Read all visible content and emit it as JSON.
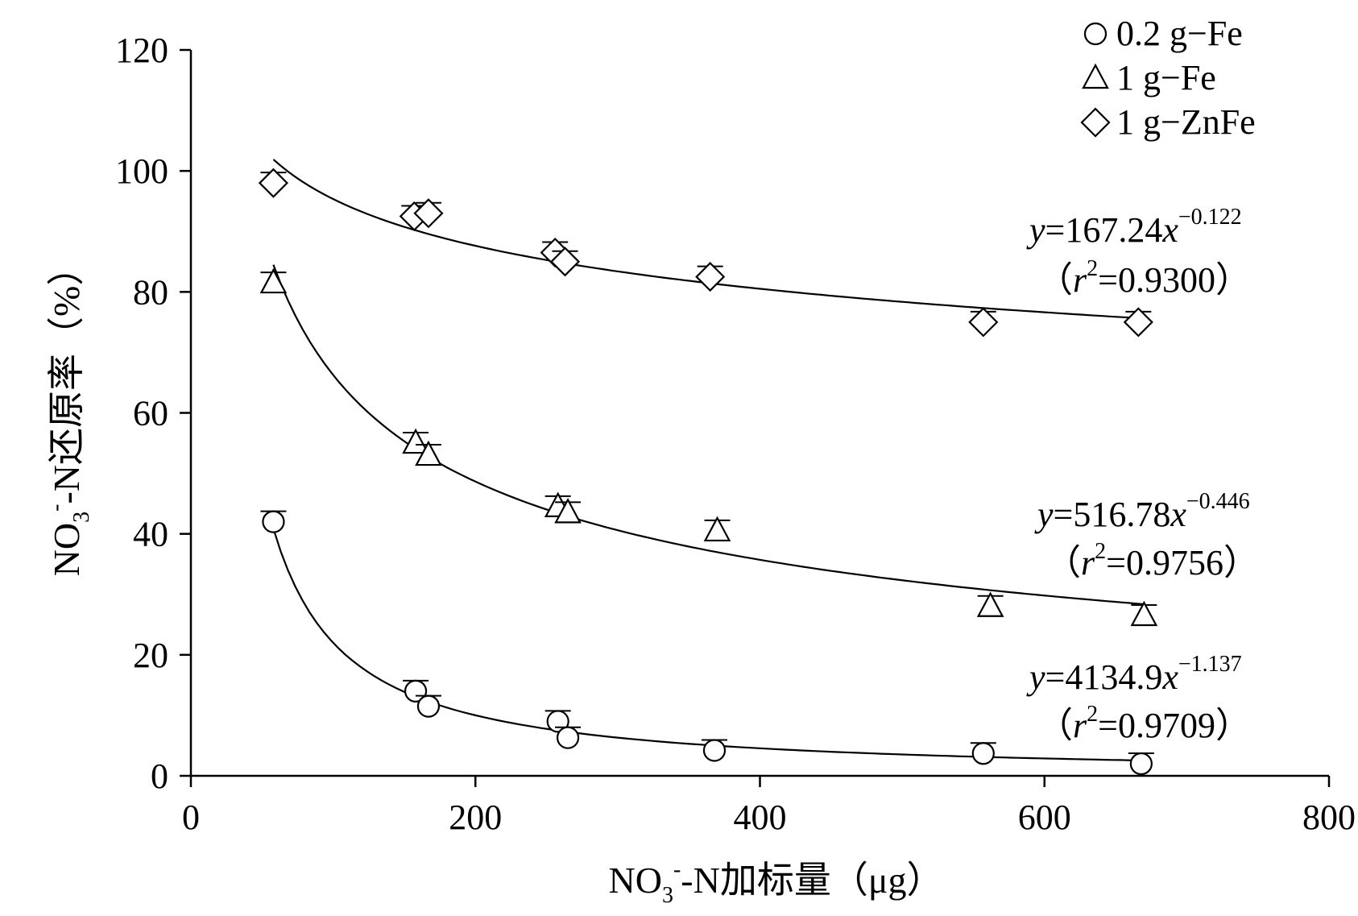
{
  "chart_data": {
    "type": "scatter",
    "xlabel": "NO3--N加标量（μg）",
    "ylabel": "NO3--N还原率（%）",
    "xlim": [
      0,
      800
    ],
    "ylim": [
      0,
      120
    ],
    "x_ticks": [
      "0",
      "200",
      "400",
      "600",
      "800"
    ],
    "y_ticks": [
      "0",
      "20",
      "40",
      "60",
      "80",
      "100",
      "120"
    ],
    "legend_position": "top-right",
    "grid": false,
    "series": [
      {
        "name": "0.2 g−Fe",
        "marker": "circle",
        "points": [
          [
            58,
            42
          ],
          [
            158,
            14
          ],
          [
            167,
            11.5
          ],
          [
            258,
            9
          ],
          [
            265,
            6.3
          ],
          [
            368,
            4.2
          ],
          [
            557,
            3.7
          ],
          [
            668,
            2
          ]
        ],
        "fit": {
          "a": 4134.9,
          "b": -1.137,
          "x_range": [
            58,
            668
          ]
        },
        "equation": {
          "y": "y",
          "coef": "=4134.9",
          "x": "x",
          "exp": "−1.137",
          "r2_open": "（",
          "r": "r",
          "r_sup": "2",
          "r2_value": "=0.9709）"
        }
      },
      {
        "name": "1 g−Fe",
        "marker": "triangle",
        "points": [
          [
            58,
            81.5
          ],
          [
            158,
            55
          ],
          [
            167,
            53
          ],
          [
            258,
            44.5
          ],
          [
            265,
            43.5
          ],
          [
            370,
            40.5
          ],
          [
            562,
            28
          ],
          [
            670,
            26.5
          ]
        ],
        "fit": {
          "a": 516.78,
          "b": -0.446,
          "x_range": [
            58,
            670
          ]
        },
        "equation": {
          "y": "y",
          "coef": "=516.78",
          "x": "x",
          "exp": "−0.446",
          "r2_open": "（",
          "r": "r",
          "r_sup": "2",
          "r2_value": "=0.9756）"
        }
      },
      {
        "name": "1 g−ZnFe",
        "marker": "diamond",
        "points": [
          [
            58,
            98
          ],
          [
            157,
            92.5
          ],
          [
            167,
            93
          ],
          [
            256,
            86.5
          ],
          [
            263,
            85
          ],
          [
            365,
            82.5
          ],
          [
            557,
            75
          ],
          [
            666,
            75
          ]
        ],
        "fit": {
          "a": 167.24,
          "b": -0.122,
          "x_range": [
            58,
            666
          ]
        },
        "equation": {
          "y": "y",
          "coef": "=167.24",
          "x": "x",
          "exp": "−0.122",
          "r2_open": "（",
          "r": "r",
          "r_sup": "2",
          "r2_value": "=0.9300）"
        }
      }
    ]
  }
}
